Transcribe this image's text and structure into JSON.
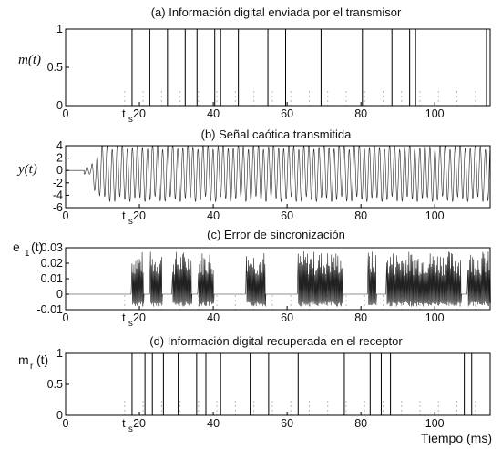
{
  "chart_data": [
    {
      "type": "line",
      "title": "(a) Información digital enviada por el transmisor",
      "ylabel": "m(t)",
      "xlabel": "",
      "xlim": [
        0,
        115
      ],
      "ylim": [
        0,
        1
      ],
      "yticks": [
        "0",
        "0.5",
        "1"
      ],
      "xticks": [
        0,
        20,
        40,
        60,
        80,
        100
      ],
      "xtick_labels": [
        "0",
        "20",
        "40",
        "60",
        "80",
        "100"
      ],
      "ts_label": "t",
      "ts_sub": "s",
      "ts_value": 16,
      "signal": "digital",
      "bit_duration": 1.6,
      "bits_start": 18,
      "bits": "1110001110011101110000011100000011111110000011101111111111110111001111001111111111111100111000"
    },
    {
      "type": "line",
      "title": "(b) Señal caótica transmitida",
      "ylabel": "y(t)",
      "xlabel": "",
      "xlim": [
        0,
        115
      ],
      "ylim": [
        -6,
        4
      ],
      "yticks": [
        "-6",
        "-4",
        "-2",
        "0",
        "2",
        "4"
      ],
      "xticks": [
        0,
        20,
        40,
        60,
        80,
        100
      ],
      "xtick_labels": [
        "0",
        "20",
        "40",
        "60",
        "80",
        "100"
      ],
      "ts_label": "t",
      "ts_sub": "s",
      "ts_value": 16,
      "signal": "chaotic",
      "onset": 7,
      "amplitude_range": [
        -5,
        4
      ]
    },
    {
      "type": "line",
      "title": "(c) Error de sincronización",
      "ylabel": "e",
      "ylabel_sub": "1",
      "ylabel_suffix": "(t)",
      "xlabel": "",
      "xlim": [
        0,
        115
      ],
      "ylim": [
        -0.01,
        0.03
      ],
      "yticks": [
        "-0.01",
        "0",
        "0.01",
        "0.02",
        "0.03"
      ],
      "xticks": [
        0,
        20,
        40,
        60,
        80,
        100
      ],
      "xtick_labels": [
        "0",
        "20",
        "40",
        "60",
        "80",
        "100"
      ],
      "ts_label": "t",
      "ts_sub": "s",
      "ts_value": 16,
      "signal": "error",
      "bursts": [
        [
          18,
          21
        ],
        [
          23,
          26
        ],
        [
          29,
          34
        ],
        [
          36,
          40
        ],
        [
          49,
          54
        ],
        [
          63,
          75
        ],
        [
          82,
          84
        ],
        [
          87,
          107
        ],
        [
          109,
          115
        ]
      ]
    },
    {
      "type": "line",
      "title": "(d) Información digital recuperada en el receptor",
      "ylabel": "m",
      "ylabel_sub": "r",
      "ylabel_suffix": "(t)",
      "xlabel": "Tiempo (ms)",
      "xlim": [
        0,
        115
      ],
      "ylim": [
        0,
        1
      ],
      "yticks": [
        "0",
        "0.5",
        "1"
      ],
      "xticks": [
        0,
        20,
        40,
        60,
        80,
        100
      ],
      "xtick_labels": [
        "0",
        "20",
        "40",
        "60",
        "80",
        "100"
      ],
      "ts_label": "t",
      "ts_sub": "s",
      "ts_value": 16,
      "signal": "recovered",
      "pulses": [
        [
          18,
          21.5
        ],
        [
          23.5,
          26.5
        ],
        [
          30.5,
          35.5
        ],
        [
          38,
          42
        ],
        [
          50,
          55
        ],
        [
          63,
          75.5
        ],
        [
          82.5,
          85.5
        ],
        [
          88,
          108
        ],
        [
          110,
          115
        ]
      ]
    }
  ]
}
